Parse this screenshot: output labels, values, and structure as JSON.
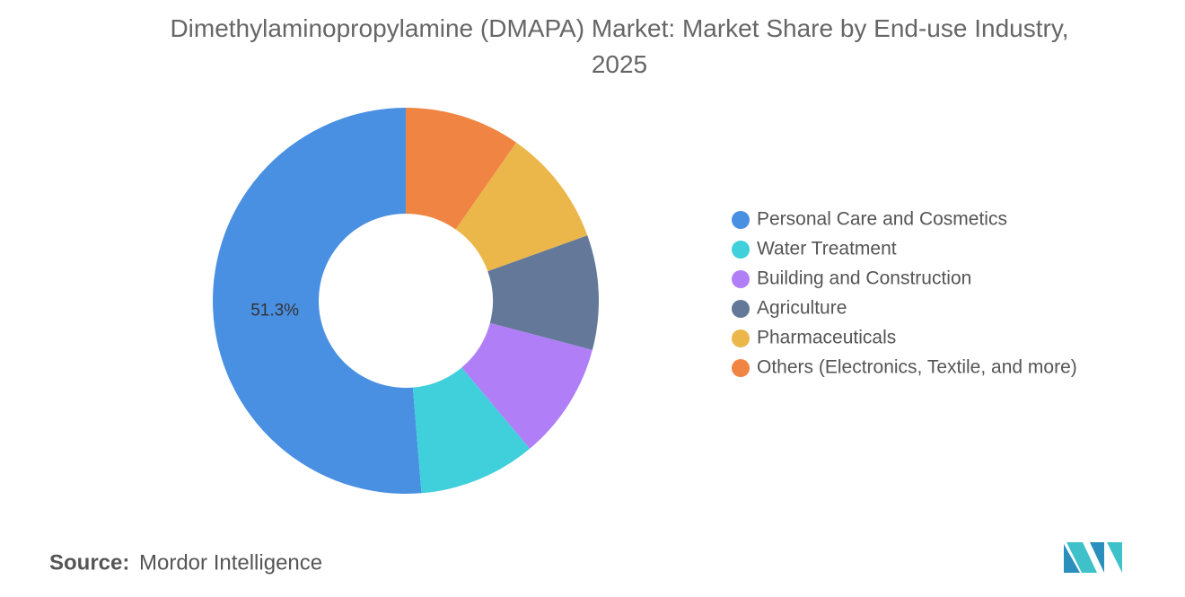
{
  "chart_data": {
    "type": "donut",
    "title": "Dimethylaminopropylamine (DMAPA) Market: Market Share by End-use Industry, 2025",
    "categories": [
      "Personal Care and Cosmetics",
      "Water Treatment",
      "Building and Construction",
      "Agriculture",
      "Pharmaceuticals",
      "Others (Electronics, Textile, and more)"
    ],
    "values": [
      51.3,
      9.8,
      9.8,
      9.6,
      9.8,
      9.7
    ],
    "value_labels": [
      "51.3%",
      null,
      null,
      null,
      null,
      null
    ],
    "colors": [
      "#4a90e2",
      "#3fd0db",
      "#b07ff8",
      "#647899",
      "#ebb74a",
      "#f08443"
    ],
    "legend": "right",
    "source_label": "Source:",
    "source": "Mordor Intelligence"
  }
}
